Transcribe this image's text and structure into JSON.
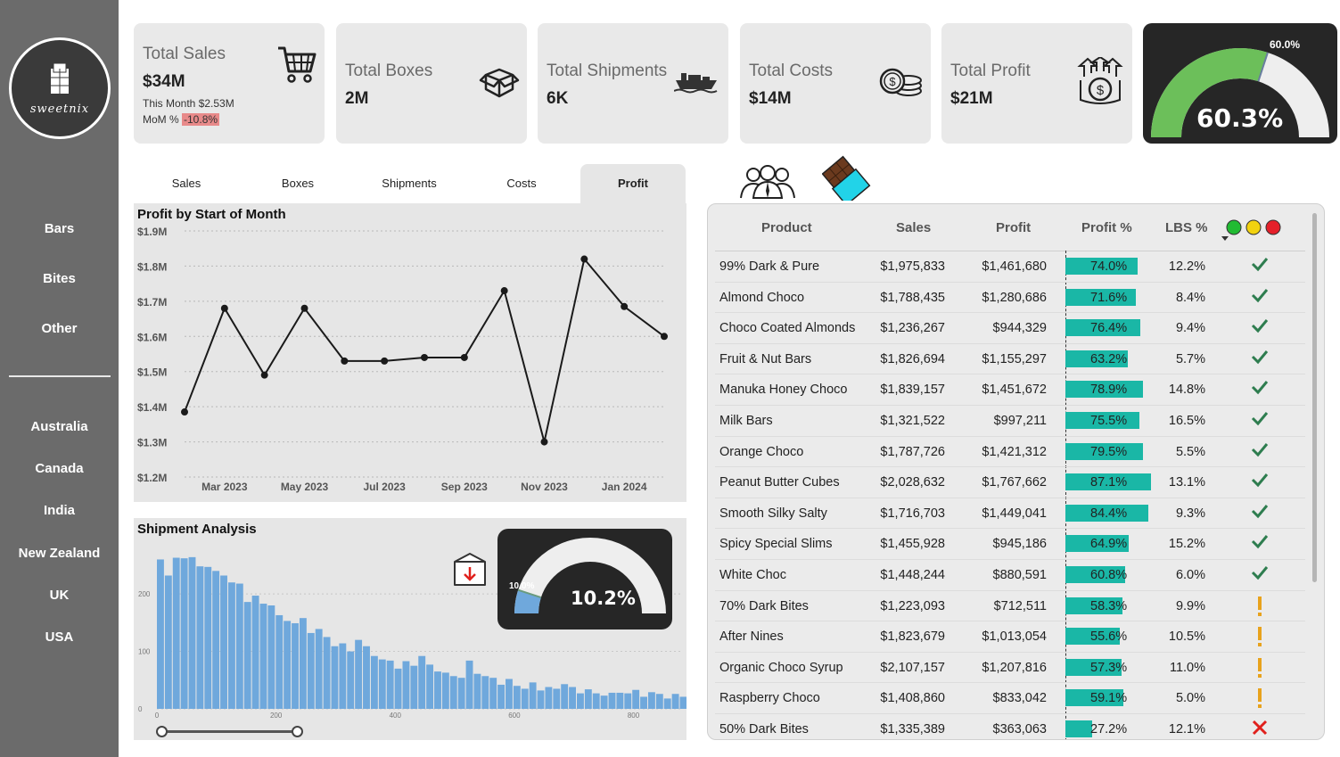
{
  "sidebar": {
    "logo_text": "sweetnix",
    "categories": [
      {
        "label": "Bars"
      },
      {
        "label": "Bites"
      },
      {
        "label": "Other"
      }
    ],
    "countries": [
      {
        "label": "Australia"
      },
      {
        "label": "Canada"
      },
      {
        "label": "India"
      },
      {
        "label": "New Zealand"
      },
      {
        "label": "UK"
      },
      {
        "label": "USA"
      }
    ]
  },
  "kpis": {
    "sales": {
      "label": "Total Sales",
      "value": "$34M",
      "this_month": "This Month $2.53M",
      "mom_label": "MoM %",
      "mom_value": "-10.8%",
      "icon": "cart-icon"
    },
    "boxes": {
      "label": "Total Boxes",
      "value": "2M",
      "icon": "box-icon"
    },
    "shipments": {
      "label": "Total Shipments",
      "value": "6K",
      "icon": "ship-icon"
    },
    "costs": {
      "label": "Total Costs",
      "value": "$14M",
      "icon": "coins-icon"
    },
    "profit": {
      "label": "Total Profit",
      "value": "$21M",
      "icon": "money-growth-icon"
    }
  },
  "profit_gauge": {
    "value_label": "60.3%",
    "target_label": "60.0%",
    "value": 0.603,
    "target": 0.6,
    "fill_color": "#6cbf5a"
  },
  "tabs": [
    {
      "label": "Sales"
    },
    {
      "label": "Boxes"
    },
    {
      "label": "Shipments"
    },
    {
      "label": "Costs"
    },
    {
      "label": "Profit"
    }
  ],
  "active_tab": "Profit",
  "chart_data": [
    {
      "type": "line",
      "title": "Profit by Start of Month",
      "x": [
        "Feb 2023",
        "Mar 2023",
        "Apr 2023",
        "May 2023",
        "Jun 2023",
        "Jul 2023",
        "Aug 2023",
        "Sep 2023",
        "Oct 2023",
        "Nov 2023",
        "Dec 2023",
        "Jan 2024",
        "Feb 2024"
      ],
      "x_tick_labels": [
        "Mar 2023",
        "May 2023",
        "Jul 2023",
        "Sep 2023",
        "Nov 2023",
        "Jan 2024"
      ],
      "values": [
        1.385,
        1.68,
        1.49,
        1.68,
        1.53,
        1.53,
        1.54,
        1.54,
        1.73,
        1.3,
        1.82,
        1.685,
        1.6
      ],
      "y_tick_labels": [
        "$1.9M",
        "$1.8M",
        "$1.7M",
        "$1.6M",
        "$1.5M",
        "$1.4M",
        "$1.3M",
        "$1.2M"
      ],
      "ylim": [
        1.2,
        1.9
      ],
      "y_unit": "$M",
      "grid": true,
      "line_color": "#1a1a1a"
    },
    {
      "type": "bar",
      "title": "Shipment Analysis",
      "bin_width": 13.3,
      "x_tick_labels": [
        "0",
        "200",
        "400",
        "600",
        "800"
      ],
      "xlim": [
        0,
        880
      ],
      "y_tick_labels": [
        "0",
        "100",
        "200"
      ],
      "ylim": [
        0,
        270
      ],
      "values": [
        260,
        232,
        263,
        262,
        264,
        248,
        247,
        240,
        232,
        220,
        218,
        186,
        197,
        183,
        180,
        163,
        153,
        149,
        158,
        132,
        139,
        125,
        109,
        114,
        100,
        120,
        109,
        92,
        86,
        84,
        70,
        83,
        75,
        92,
        77,
        65,
        63,
        57,
        54,
        84,
        61,
        57,
        54,
        42,
        52,
        40,
        35,
        46,
        32,
        38,
        35,
        43,
        38,
        27,
        34,
        27,
        23,
        28,
        28,
        27,
        33,
        21,
        29,
        26,
        18,
        26,
        21,
        18,
        14,
        19,
        18,
        20
      ],
      "bar_color": "#6fa8dc"
    }
  ],
  "shipment_gauge": {
    "value_label": "10.2%",
    "target_label": "10.0%",
    "value": 0.102,
    "target": 0.1,
    "fill_color": "#6fa8dc"
  },
  "table": {
    "headers": {
      "product": "Product",
      "sales": "Sales",
      "profit": "Profit",
      "profit_pct": "Profit %",
      "lbs_pct": "LBS %"
    },
    "status_colors": [
      "#22bb33",
      "#f2d20f",
      "#e5202a"
    ],
    "rows": [
      {
        "product": "99% Dark & Pure",
        "sales": "$1,975,833",
        "profit": "$1,461,680",
        "profit_pct": "74.0%",
        "pct": 74.0,
        "lbs_pct": "12.2%",
        "status": "check"
      },
      {
        "product": "Almond Choco",
        "sales": "$1,788,435",
        "profit": "$1,280,686",
        "profit_pct": "71.6%",
        "pct": 71.6,
        "lbs_pct": "8.4%",
        "status": "check"
      },
      {
        "product": "Choco Coated Almonds",
        "sales": "$1,236,267",
        "profit": "$944,329",
        "profit_pct": "76.4%",
        "pct": 76.4,
        "lbs_pct": "9.4%",
        "status": "check"
      },
      {
        "product": "Fruit & Nut Bars",
        "sales": "$1,826,694",
        "profit": "$1,155,297",
        "profit_pct": "63.2%",
        "pct": 63.2,
        "lbs_pct": "5.7%",
        "status": "check"
      },
      {
        "product": "Manuka Honey Choco",
        "sales": "$1,839,157",
        "profit": "$1,451,672",
        "profit_pct": "78.9%",
        "pct": 78.9,
        "lbs_pct": "14.8%",
        "status": "check"
      },
      {
        "product": "Milk Bars",
        "sales": "$1,321,522",
        "profit": "$997,211",
        "profit_pct": "75.5%",
        "pct": 75.5,
        "lbs_pct": "16.5%",
        "status": "check"
      },
      {
        "product": "Orange Choco",
        "sales": "$1,787,726",
        "profit": "$1,421,312",
        "profit_pct": "79.5%",
        "pct": 79.5,
        "lbs_pct": "5.5%",
        "status": "check"
      },
      {
        "product": "Peanut Butter Cubes",
        "sales": "$2,028,632",
        "profit": "$1,767,662",
        "profit_pct": "87.1%",
        "pct": 87.1,
        "lbs_pct": "13.1%",
        "status": "check"
      },
      {
        "product": "Smooth Silky Salty",
        "sales": "$1,716,703",
        "profit": "$1,449,041",
        "profit_pct": "84.4%",
        "pct": 84.4,
        "lbs_pct": "9.3%",
        "status": "check"
      },
      {
        "product": "Spicy Special Slims",
        "sales": "$1,455,928",
        "profit": "$945,186",
        "profit_pct": "64.9%",
        "pct": 64.9,
        "lbs_pct": "15.2%",
        "status": "check"
      },
      {
        "product": "White Choc",
        "sales": "$1,448,244",
        "profit": "$880,591",
        "profit_pct": "60.8%",
        "pct": 60.8,
        "lbs_pct": "6.0%",
        "status": "check"
      },
      {
        "product": "70% Dark Bites",
        "sales": "$1,223,093",
        "profit": "$712,511",
        "profit_pct": "58.3%",
        "pct": 58.3,
        "lbs_pct": "9.9%",
        "status": "warn"
      },
      {
        "product": "After Nines",
        "sales": "$1,823,679",
        "profit": "$1,013,054",
        "profit_pct": "55.6%",
        "pct": 55.6,
        "lbs_pct": "10.5%",
        "status": "warn"
      },
      {
        "product": "Organic Choco Syrup",
        "sales": "$2,107,157",
        "profit": "$1,207,816",
        "profit_pct": "57.3%",
        "pct": 57.3,
        "lbs_pct": "11.0%",
        "status": "warn"
      },
      {
        "product": "Raspberry Choco",
        "sales": "$1,408,860",
        "profit": "$833,042",
        "profit_pct": "59.1%",
        "pct": 59.1,
        "lbs_pct": "5.0%",
        "status": "warn"
      },
      {
        "product": "50% Dark Bites",
        "sales": "$1,335,389",
        "profit": "$363,063",
        "profit_pct": "27.2%",
        "pct": 27.2,
        "lbs_pct": "12.1%",
        "status": "cross"
      }
    ]
  },
  "icons": {
    "customers": "people-icon",
    "product": "chocolate-bar-icon",
    "export": "box-download-icon"
  }
}
